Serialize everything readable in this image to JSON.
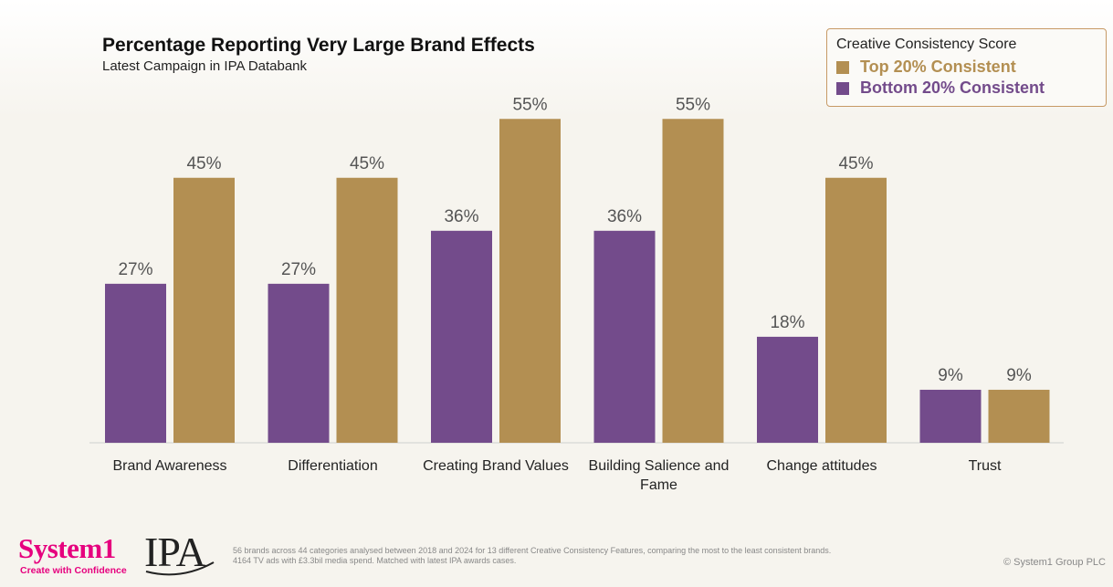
{
  "chart_data": {
    "type": "bar",
    "title": "Percentage Reporting Very Large Brand Effects",
    "subtitle": "Latest Campaign in IPA Databank",
    "categories": [
      "Brand Awareness",
      "Differentiation",
      "Creating Brand Values",
      "Building Salience and Fame",
      "Change attitudes",
      "Trust"
    ],
    "series": [
      {
        "name": "Bottom 20% Consistent",
        "color": "#734b8b",
        "values": [
          27,
          27,
          36,
          36,
          18,
          9
        ],
        "labels": [
          "27%",
          "27%",
          "36%",
          "36%",
          "18%",
          "9%"
        ]
      },
      {
        "name": "Top 20% Consistent",
        "color": "#b38f52",
        "values": [
          45,
          45,
          55,
          55,
          45,
          9
        ],
        "labels": [
          "45%",
          "45%",
          "55%",
          "55%",
          "45%",
          "9%"
        ]
      }
    ],
    "ylim": [
      0,
      60
    ],
    "grid": false,
    "legend_title": "Creative Consistency Score",
    "legend_position": "top-right"
  },
  "footer": {
    "note_line1": "56 brands across 44 categories analysed between 2018 and 2024 for 13 different Creative Consistency Features, comparing the most to the least consistent brands.",
    "note_line2": "4164 TV ads with £3.3bil media spend. Matched with latest IPA awards cases.",
    "copyright": "© System1 Group PLC",
    "logo_system1": "System1",
    "logo_system1_tagline": "Create with Confidence",
    "logo_ipa": "IPA"
  }
}
